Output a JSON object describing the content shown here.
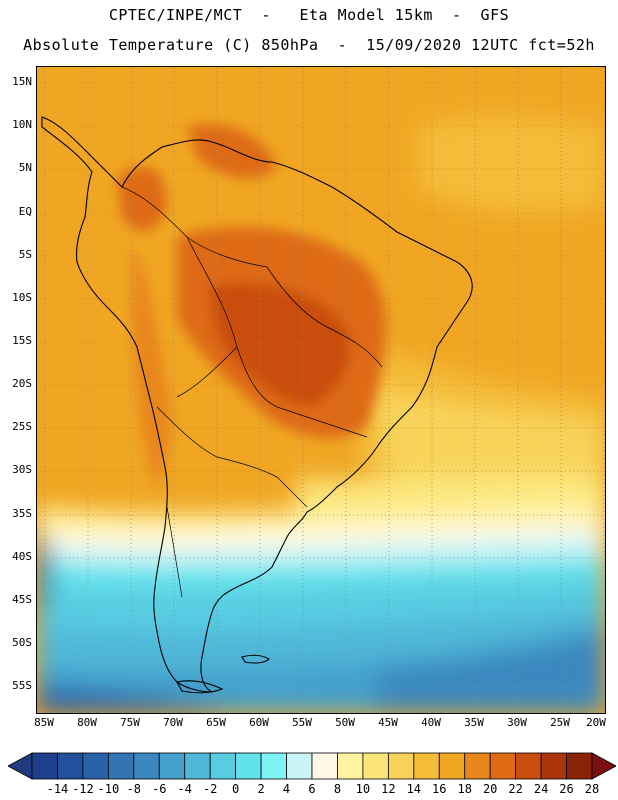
{
  "header": {
    "title_line1": "CPTEC/INPE/MCT  -   Eta Model 15km  -  GFS",
    "title_line2": "Absolute Temperature (C) 850hPa  -  15/09/2020 12UTC fct=52h"
  },
  "map": {
    "lat_labels": [
      "15N",
      "10N",
      "5N",
      "EQ",
      "5S",
      "10S",
      "15S",
      "20S",
      "25S",
      "30S",
      "35S",
      "40S",
      "45S",
      "50S",
      "55S"
    ],
    "lon_labels": [
      "85W",
      "80W",
      "75W",
      "70W",
      "65W",
      "60W",
      "55W",
      "50W",
      "45W",
      "40W",
      "35W",
      "30W",
      "25W",
      "20W"
    ]
  },
  "colorbar": {
    "tick_labels": [
      "-14",
      "-12",
      "-10",
      "-8",
      "-6",
      "-4",
      "-2",
      "0",
      "2",
      "4",
      "6",
      "8",
      "10",
      "12",
      "14",
      "16",
      "18",
      "20",
      "22",
      "24",
      "26",
      "28"
    ],
    "colors": [
      "#1e3f8c",
      "#23509c",
      "#2a62aa",
      "#3374b5",
      "#3b88c0",
      "#45a0cc",
      "#4fb7d8",
      "#58cde2",
      "#62e3ec",
      "#7ff4f4",
      "#c8f4f8",
      "#fff8e6",
      "#fff2a0",
      "#fce67a",
      "#f8d35a",
      "#f4bc38",
      "#f0a623",
      "#e8861a",
      "#de6a14",
      "#c94e10",
      "#ac360c",
      "#8a2408"
    ],
    "under_color": "#203a80",
    "over_color": "#7a1010"
  }
}
